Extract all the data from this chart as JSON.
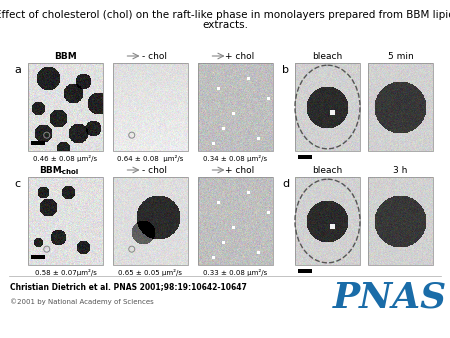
{
  "title_line1": "Effect of cholesterol (chol) on the raft-like phase in monolayers prepared from BBM lipid",
  "title_line2": "extracts.",
  "title_fontsize": 7.5,
  "citation": "Christian Dietrich et al. PNAS 2001;98:19:10642-10647",
  "copyright": "©2001 by National Academy of Sciences",
  "pnas_color": "#1a6ca8",
  "bg_color": "#f0f0f0",
  "row1_values": [
    "0.46 ± 0.08 μm²/s",
    "0.64 ± 0.08  μm²/s",
    "0.34 ± 0.08 μm²/s"
  ],
  "row2_values": [
    "0.58 ± 0.07μm²/s",
    "0.65 ± 0.05 μm²/s",
    "0.33 ± 0.08 μm²/s"
  ],
  "b_labels": [
    "bleach",
    "5 min"
  ],
  "d_labels": [
    "bleach",
    "3 h"
  ]
}
